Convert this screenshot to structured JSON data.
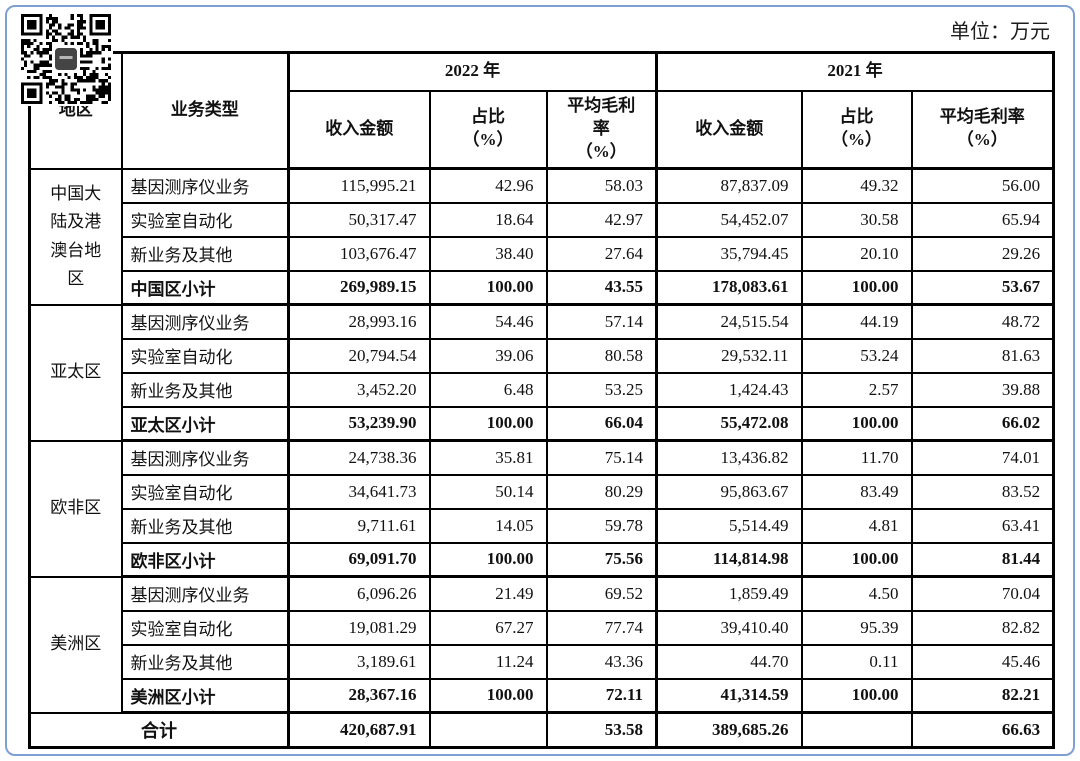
{
  "page": {
    "unit_label": "单位：万元"
  },
  "icons": {
    "qr": "qr-code"
  },
  "table": {
    "header": {
      "region": "地区",
      "business_type": "业务类型",
      "year_2022": "2022 年",
      "year_2021": "2021 年",
      "revenue": "收入金额",
      "share": "占比\n（%）",
      "margin_2022": "平均毛利\n率\n（%）",
      "margin_2021": "平均毛利率\n（%）"
    },
    "groups": [
      {
        "region": "中国大陆及港澳台地区",
        "rows": [
          {
            "type": "基因测序仪业务",
            "rev_2022": "115,995.21",
            "share_2022": "42.96",
            "margin_2022": "58.03",
            "rev_2021": "87,837.09",
            "share_2021": "49.32",
            "margin_2021": "56.00"
          },
          {
            "type": "实验室自动化",
            "rev_2022": "50,317.47",
            "share_2022": "18.64",
            "margin_2022": "42.97",
            "rev_2021": "54,452.07",
            "share_2021": "30.58",
            "margin_2021": "65.94"
          },
          {
            "type": "新业务及其他",
            "rev_2022": "103,676.47",
            "share_2022": "38.40",
            "margin_2022": "27.64",
            "rev_2021": "35,794.45",
            "share_2021": "20.10",
            "margin_2021": "29.26"
          },
          {
            "type": "中国区小计",
            "rev_2022": "269,989.15",
            "share_2022": "100.00",
            "margin_2022": "43.55",
            "rev_2021": "178,083.61",
            "share_2021": "100.00",
            "margin_2021": "53.67"
          }
        ]
      },
      {
        "region": "亚太区",
        "rows": [
          {
            "type": "基因测序仪业务",
            "rev_2022": "28,993.16",
            "share_2022": "54.46",
            "margin_2022": "57.14",
            "rev_2021": "24,515.54",
            "share_2021": "44.19",
            "margin_2021": "48.72"
          },
          {
            "type": "实验室自动化",
            "rev_2022": "20,794.54",
            "share_2022": "39.06",
            "margin_2022": "80.58",
            "rev_2021": "29,532.11",
            "share_2021": "53.24",
            "margin_2021": "81.63"
          },
          {
            "type": "新业务及其他",
            "rev_2022": "3,452.20",
            "share_2022": "6.48",
            "margin_2022": "53.25",
            "rev_2021": "1,424.43",
            "share_2021": "2.57",
            "margin_2021": "39.88"
          },
          {
            "type": "亚太区小计",
            "rev_2022": "53,239.90",
            "share_2022": "100.00",
            "margin_2022": "66.04",
            "rev_2021": "55,472.08",
            "share_2021": "100.00",
            "margin_2021": "66.02"
          }
        ]
      },
      {
        "region": "欧非区",
        "rows": [
          {
            "type": "基因测序仪业务",
            "rev_2022": "24,738.36",
            "share_2022": "35.81",
            "margin_2022": "75.14",
            "rev_2021": "13,436.82",
            "share_2021": "11.70",
            "margin_2021": "74.01"
          },
          {
            "type": "实验室自动化",
            "rev_2022": "34,641.73",
            "share_2022": "50.14",
            "margin_2022": "80.29",
            "rev_2021": "95,863.67",
            "share_2021": "83.49",
            "margin_2021": "83.52"
          },
          {
            "type": "新业务及其他",
            "rev_2022": "9,711.61",
            "share_2022": "14.05",
            "margin_2022": "59.78",
            "rev_2021": "5,514.49",
            "share_2021": "4.81",
            "margin_2021": "63.41"
          },
          {
            "type": "欧非区小计",
            "rev_2022": "69,091.70",
            "share_2022": "100.00",
            "margin_2022": "75.56",
            "rev_2021": "114,814.98",
            "share_2021": "100.00",
            "margin_2021": "81.44"
          }
        ]
      },
      {
        "region": "美洲区",
        "rows": [
          {
            "type": "基因测序仪业务",
            "rev_2022": "6,096.26",
            "share_2022": "21.49",
            "margin_2022": "69.52",
            "rev_2021": "1,859.49",
            "share_2021": "4.50",
            "margin_2021": "70.04"
          },
          {
            "type": "实验室自动化",
            "rev_2022": "19,081.29",
            "share_2022": "67.27",
            "margin_2022": "77.74",
            "rev_2021": "39,410.40",
            "share_2021": "95.39",
            "margin_2021": "82.82"
          },
          {
            "type": "新业务及其他",
            "rev_2022": "3,189.61",
            "share_2022": "11.24",
            "margin_2022": "43.36",
            "rev_2021": "44.70",
            "share_2021": "0.11",
            "margin_2021": "45.46"
          },
          {
            "type": "美洲区小计",
            "rev_2022": "28,367.16",
            "share_2022": "100.00",
            "margin_2022": "72.11",
            "rev_2021": "41,314.59",
            "share_2021": "100.00",
            "margin_2021": "82.21"
          }
        ]
      }
    ],
    "total": {
      "label": "合计",
      "rev_2022": "420,687.91",
      "share_2022": "",
      "margin_2022": "53.58",
      "rev_2021": "389,685.26",
      "share_2021": "",
      "margin_2021": "66.63"
    }
  }
}
